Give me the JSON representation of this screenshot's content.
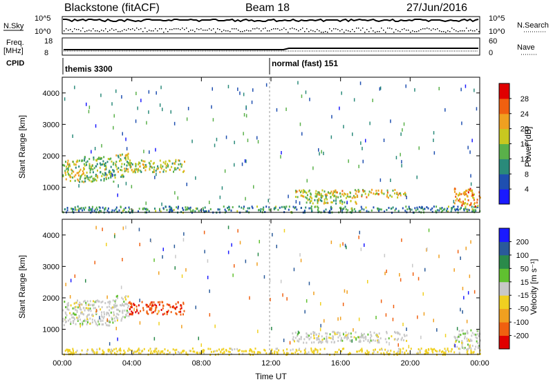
{
  "header": {
    "station": "Blackstone (fitACF)",
    "beam": "Beam 18",
    "date": "27/Jun/2016"
  },
  "noise_panel": {
    "left_label": "N.Sky",
    "right_label": "N.Search",
    "tick_top": "10^5",
    "tick_bottom": "10^0"
  },
  "freq_panel": {
    "left_label_line1": "Freq.",
    "left_label_line2": "[MHz]",
    "left_tick_top": "18",
    "left_tick_bottom": "8",
    "right_label": "Nave",
    "right_tick_top": "60",
    "right_tick_bottom": "0"
  },
  "cpid_panel": {
    "label": "CPID",
    "modes": [
      "themis 3300",
      "normal (fast) 151"
    ]
  },
  "chart_data": [
    {
      "type": "heatmap",
      "name": "Power",
      "ylabel": "Slant Range [km]",
      "xlabel": "Time UT",
      "x_ticks": [
        "00:00",
        "04:00",
        "08:00",
        "12:00",
        "16:00",
        "20:00",
        "00:00"
      ],
      "y_ticks": [
        "1000",
        "2000",
        "3000",
        "4000"
      ],
      "ylim": [
        200,
        4500
      ],
      "colorbar_label": "Power [dB]",
      "colorbar_ticks": [
        "4",
        "8",
        "12",
        "16",
        "20",
        "24",
        "28"
      ],
      "colorbar_range": [
        0,
        30
      ],
      "colors": [
        "#1a1aff",
        "#1f4fb0",
        "#2a8a7a",
        "#5ab04a",
        "#c8c820",
        "#f0a020",
        "#f06010",
        "#e00000"
      ],
      "regions": [
        {
          "t": [
            0.0,
            1.2
          ],
          "r": [
            1150,
            1900
          ],
          "level": 0.55
        },
        {
          "t": [
            1.2,
            3.0
          ],
          "r": [
            1200,
            2000
          ],
          "level": 0.45
        },
        {
          "t": [
            3.0,
            3.8
          ],
          "r": [
            1300,
            2100
          ],
          "level": 0.5
        },
        {
          "t": [
            3.8,
            7.0
          ],
          "r": [
            1500,
            1900
          ],
          "level": 0.5
        },
        {
          "t": [
            0.0,
            24.0
          ],
          "r": [
            220,
            420
          ],
          "level": 0.3
        },
        {
          "t": [
            13.2,
            19.8
          ],
          "r": [
            700,
            950
          ],
          "level": 0.6
        },
        {
          "t": [
            14.0,
            17.0
          ],
          "r": [
            500,
            750
          ],
          "level": 0.5
        },
        {
          "t": [
            22.5,
            24.0
          ],
          "r": [
            400,
            1000
          ],
          "level": 0.75
        }
      ]
    },
    {
      "type": "heatmap",
      "name": "Velocity",
      "ylabel": "Slant Range [km]",
      "xlabel": "Time UT",
      "x_ticks": [
        "00:00",
        "04:00",
        "08:00",
        "12:00",
        "16:00",
        "20:00",
        "00:00"
      ],
      "y_ticks": [
        "1000",
        "2000",
        "3000",
        "4000"
      ],
      "ylim": [
        200,
        4500
      ],
      "colorbar_label": "Velocity [m s⁻¹]",
      "colorbar_ticks": [
        "200",
        "100",
        "50",
        "15",
        "-15",
        "-50",
        "-100",
        "-200"
      ],
      "colorbar_range": [
        -250,
        250
      ],
      "colors": [
        "#1a1aff",
        "#2a5a9a",
        "#2a8a4a",
        "#60c030",
        "#c8c8c8",
        "#f0d020",
        "#f0a020",
        "#f06010",
        "#e00000"
      ],
      "regions": [
        {
          "t": [
            0.0,
            3.0
          ],
          "r": [
            1150,
            1950
          ],
          "level": 0.0
        },
        {
          "t": [
            3.0,
            3.8
          ],
          "r": [
            1300,
            2100
          ],
          "level": 0.0
        },
        {
          "t": [
            3.8,
            7.0
          ],
          "r": [
            1500,
            1900
          ],
          "level": -150
        },
        {
          "t": [
            0.0,
            24.0
          ],
          "r": [
            220,
            420
          ],
          "level": -30
        },
        {
          "t": [
            13.2,
            19.8
          ],
          "r": [
            600,
            950
          ],
          "level": 0.0
        },
        {
          "t": [
            22.5,
            24.0
          ],
          "r": [
            400,
            1000
          ],
          "level": 0.0
        }
      ]
    }
  ]
}
